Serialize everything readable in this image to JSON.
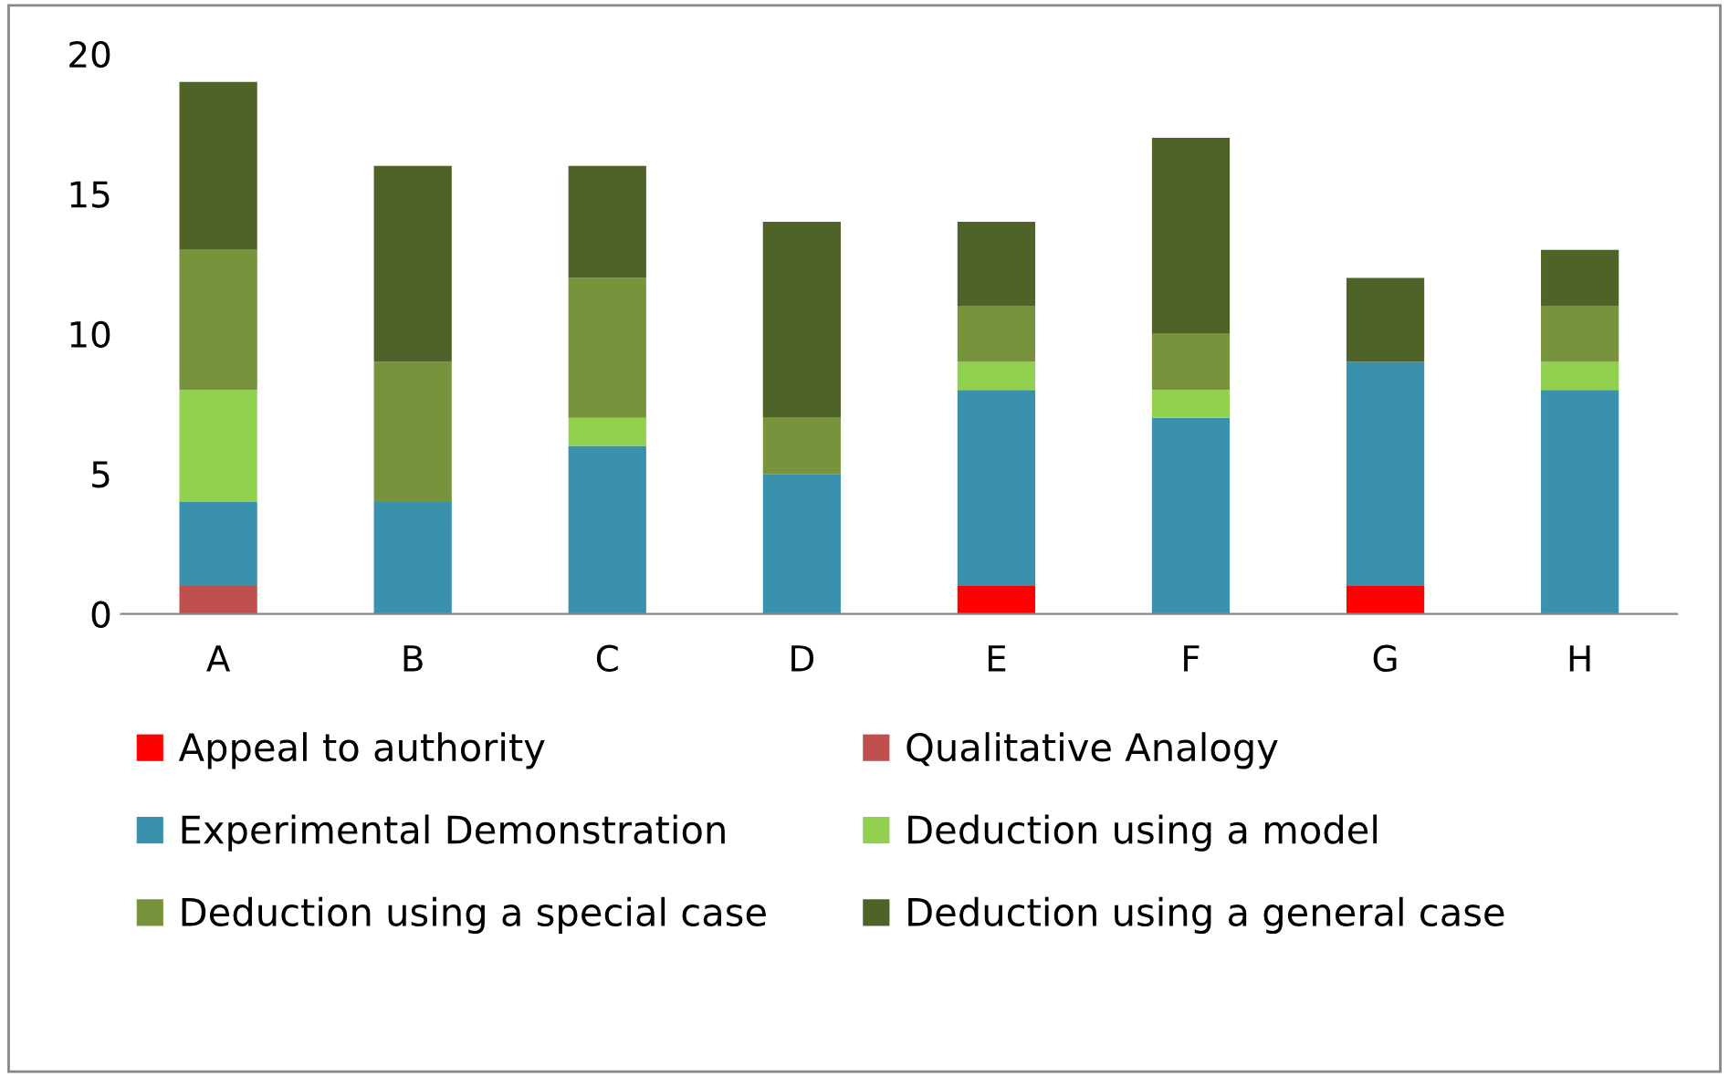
{
  "chart_data": {
    "type": "bar",
    "stacked": true,
    "categories": [
      "A",
      "B",
      "C",
      "D",
      "E",
      "F",
      "G",
      "H"
    ],
    "series": [
      {
        "name": "Appeal to authority",
        "color": "#ff0000",
        "values": [
          0,
          0,
          0,
          0,
          1,
          0,
          1,
          0
        ]
      },
      {
        "name": "Qualitative Analogy",
        "color": "#c0504d",
        "values": [
          1,
          0,
          0,
          0,
          0,
          0,
          0,
          0
        ]
      },
      {
        "name": "Experimental Demonstration",
        "color": "#3a91ad",
        "values": [
          3,
          4,
          6,
          5,
          7,
          7,
          8,
          8
        ]
      },
      {
        "name": "Deduction using a model",
        "color": "#92d050",
        "values": [
          4,
          0,
          1,
          0,
          1,
          1,
          0,
          1
        ]
      },
      {
        "name": "Deduction using a special case",
        "color": "#77933c",
        "values": [
          5,
          5,
          5,
          2,
          2,
          2,
          0,
          2
        ]
      },
      {
        "name": "Deduction using a general case",
        "color": "#4f6228",
        "values": [
          6,
          7,
          4,
          7,
          3,
          7,
          3,
          2
        ]
      }
    ],
    "ylim": [
      0,
      20
    ],
    "yticks": [
      0,
      5,
      10,
      15,
      20
    ],
    "grid": false,
    "legend": "bottom"
  }
}
